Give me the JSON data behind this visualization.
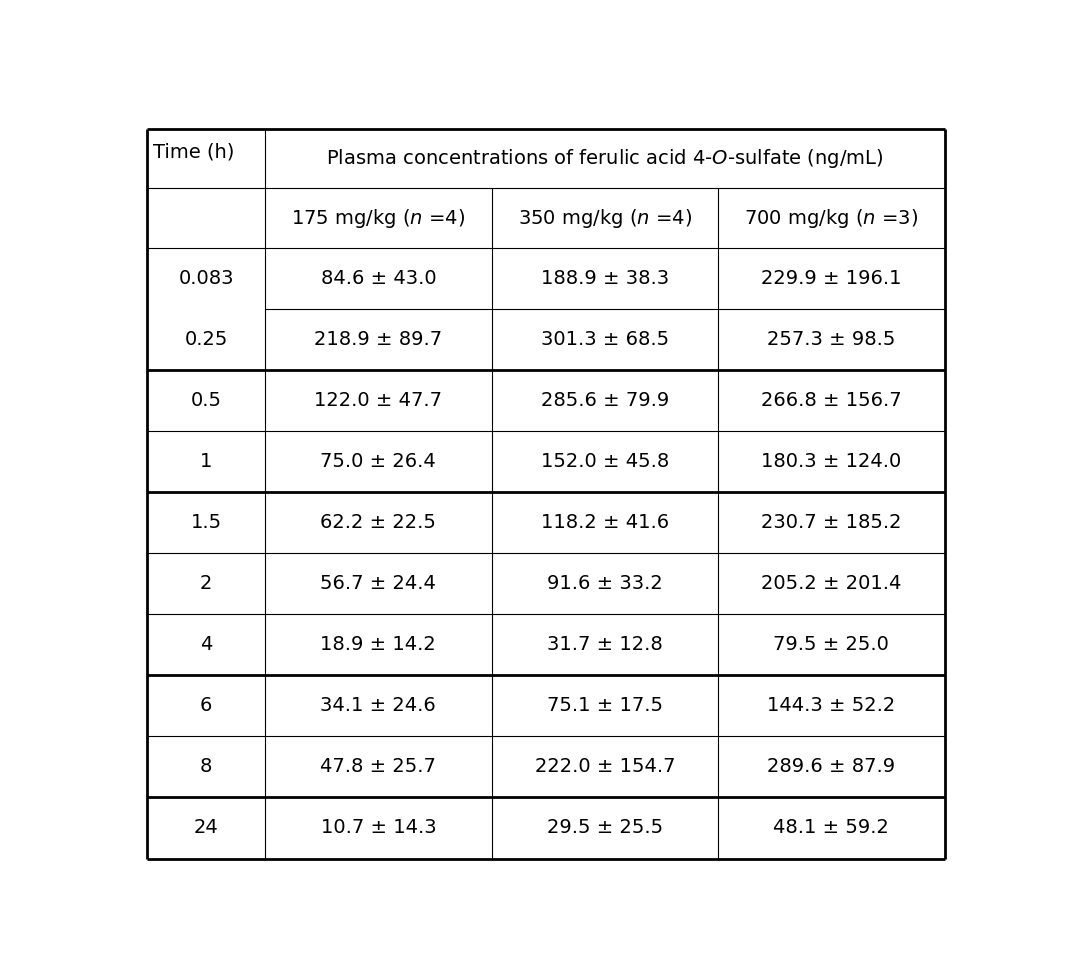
{
  "title_text": "Plasma concentrations of ferulic acid 4-$\\it{O}$-sulfate (ng/mL)",
  "time_label": "Time (h)",
  "col_headers": [
    "175 mg/kg ($\\it{n}$ =4)",
    "350 mg/kg ($\\it{n}$ =4)",
    "700 mg/kg ($\\it{n}$ =3)"
  ],
  "rows": [
    {
      "time": "0.083",
      "v1": "84.6 ± 43.0",
      "v2": "188.9 ± 38.3",
      "v3": "229.9 ± 196.1"
    },
    {
      "time": "0.25",
      "v1": "218.9 ± 89.7",
      "v2": "301.3 ± 68.5",
      "v3": "257.3 ± 98.5"
    },
    {
      "time": "0.5",
      "v1": "122.0 ± 47.7",
      "v2": "285.6 ± 79.9",
      "v3": "266.8 ± 156.7"
    },
    {
      "time": "1",
      "v1": "75.0 ± 26.4",
      "v2": "152.0 ± 45.8",
      "v3": "180.3 ± 124.0"
    },
    {
      "time": "1.5",
      "v1": "62.2 ± 22.5",
      "v2": "118.2 ± 41.6",
      "v3": "230.7 ± 185.2"
    },
    {
      "time": "2",
      "v1": "56.7 ± 24.4",
      "v2": "91.6 ± 33.2",
      "v3": "205.2 ± 201.4"
    },
    {
      "time": "4",
      "v1": "18.9 ± 14.2",
      "v2": "31.7 ± 12.8",
      "v3": "79.5 ± 25.0"
    },
    {
      "time": "6",
      "v1": "34.1 ± 24.6",
      "v2": "75.1 ± 17.5",
      "v3": "144.3 ± 52.2"
    },
    {
      "time": "8",
      "v1": "47.8 ± 25.7",
      "v2": "222.0 ± 154.7",
      "v3": "289.6 ± 87.9"
    },
    {
      "time": "24",
      "v1": "10.7 ± 14.3",
      "v2": "29.5 ± 25.5",
      "v3": "48.1 ± 59.2"
    }
  ],
  "background_color": "#ffffff",
  "font_size": 14,
  "header_font_size": 14,
  "title_font_size": 14,
  "outer_lw": 2.0,
  "thick_lw": 2.0,
  "thin_lw": 0.8
}
